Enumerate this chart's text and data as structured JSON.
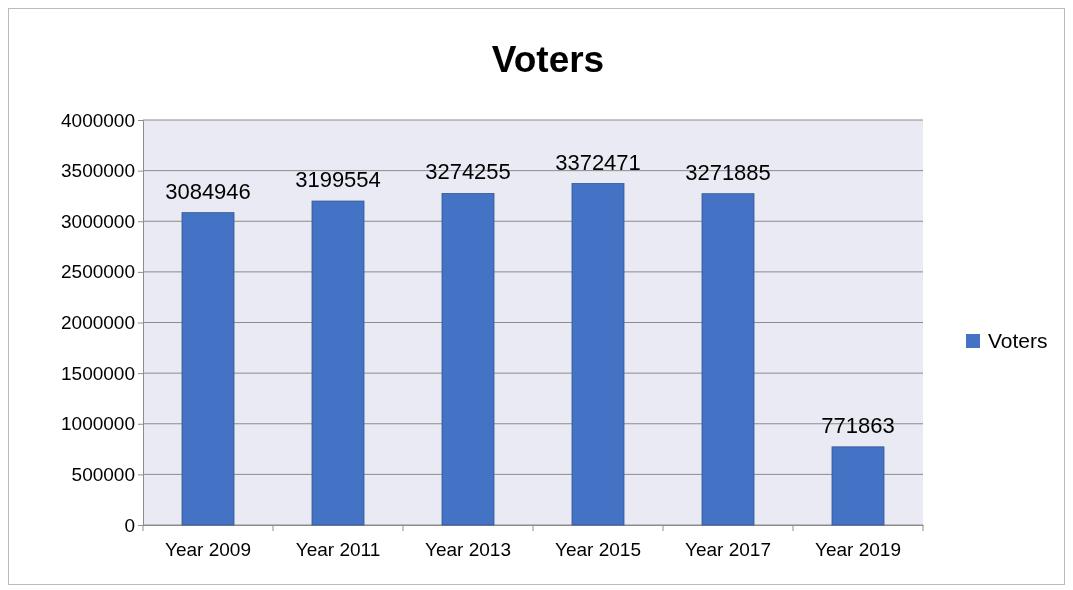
{
  "chart_data": {
    "type": "bar",
    "title": "Voters",
    "categories": [
      "Year 2009",
      "Year 2011",
      "Year 2013",
      "Year 2015",
      "Year 2017",
      "Year 2019"
    ],
    "series": [
      {
        "name": "Voters",
        "color": "#4472c4",
        "values": [
          3084946,
          3199554,
          3274255,
          3372471,
          3271885,
          771863
        ]
      }
    ],
    "ylim": [
      0,
      4000000
    ],
    "yticks": [
      0,
      500000,
      1000000,
      1500000,
      2000000,
      2500000,
      3000000,
      3500000,
      4000000
    ],
    "grid": "y",
    "legend": "right",
    "data_labels": true
  }
}
